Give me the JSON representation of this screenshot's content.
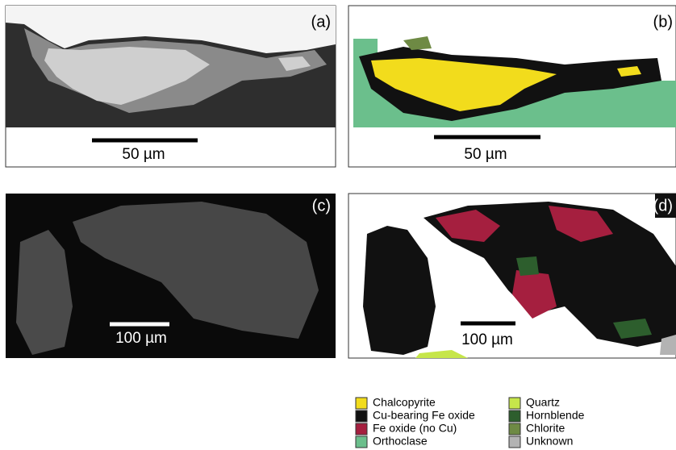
{
  "panels": [
    {
      "label": "(a)",
      "scale_label": "50 µm"
    },
    {
      "label": "(b)",
      "scale_label": "50 µm"
    },
    {
      "label": "(c)",
      "scale_label": "100 µm"
    },
    {
      "label": "(d)",
      "scale_label": "100 µm"
    }
  ],
  "legend": [
    {
      "name": "Chalcopyrite",
      "color": "#f2dc1c"
    },
    {
      "name": "Cu-bearing Fe oxide",
      "color": "#111111"
    },
    {
      "name": "Fe oxide (no Cu)",
      "color": "#a51f3f"
    },
    {
      "name": "Orthoclase",
      "color": "#6bbf8c"
    },
    {
      "name": "Quartz",
      "color": "#c6e64a"
    },
    {
      "name": "Hornblende",
      "color": "#2d5e2d"
    },
    {
      "name": "Chlorite",
      "color": "#6e8a44"
    },
    {
      "name": "Unknown",
      "color": "#b3b3b3"
    }
  ]
}
